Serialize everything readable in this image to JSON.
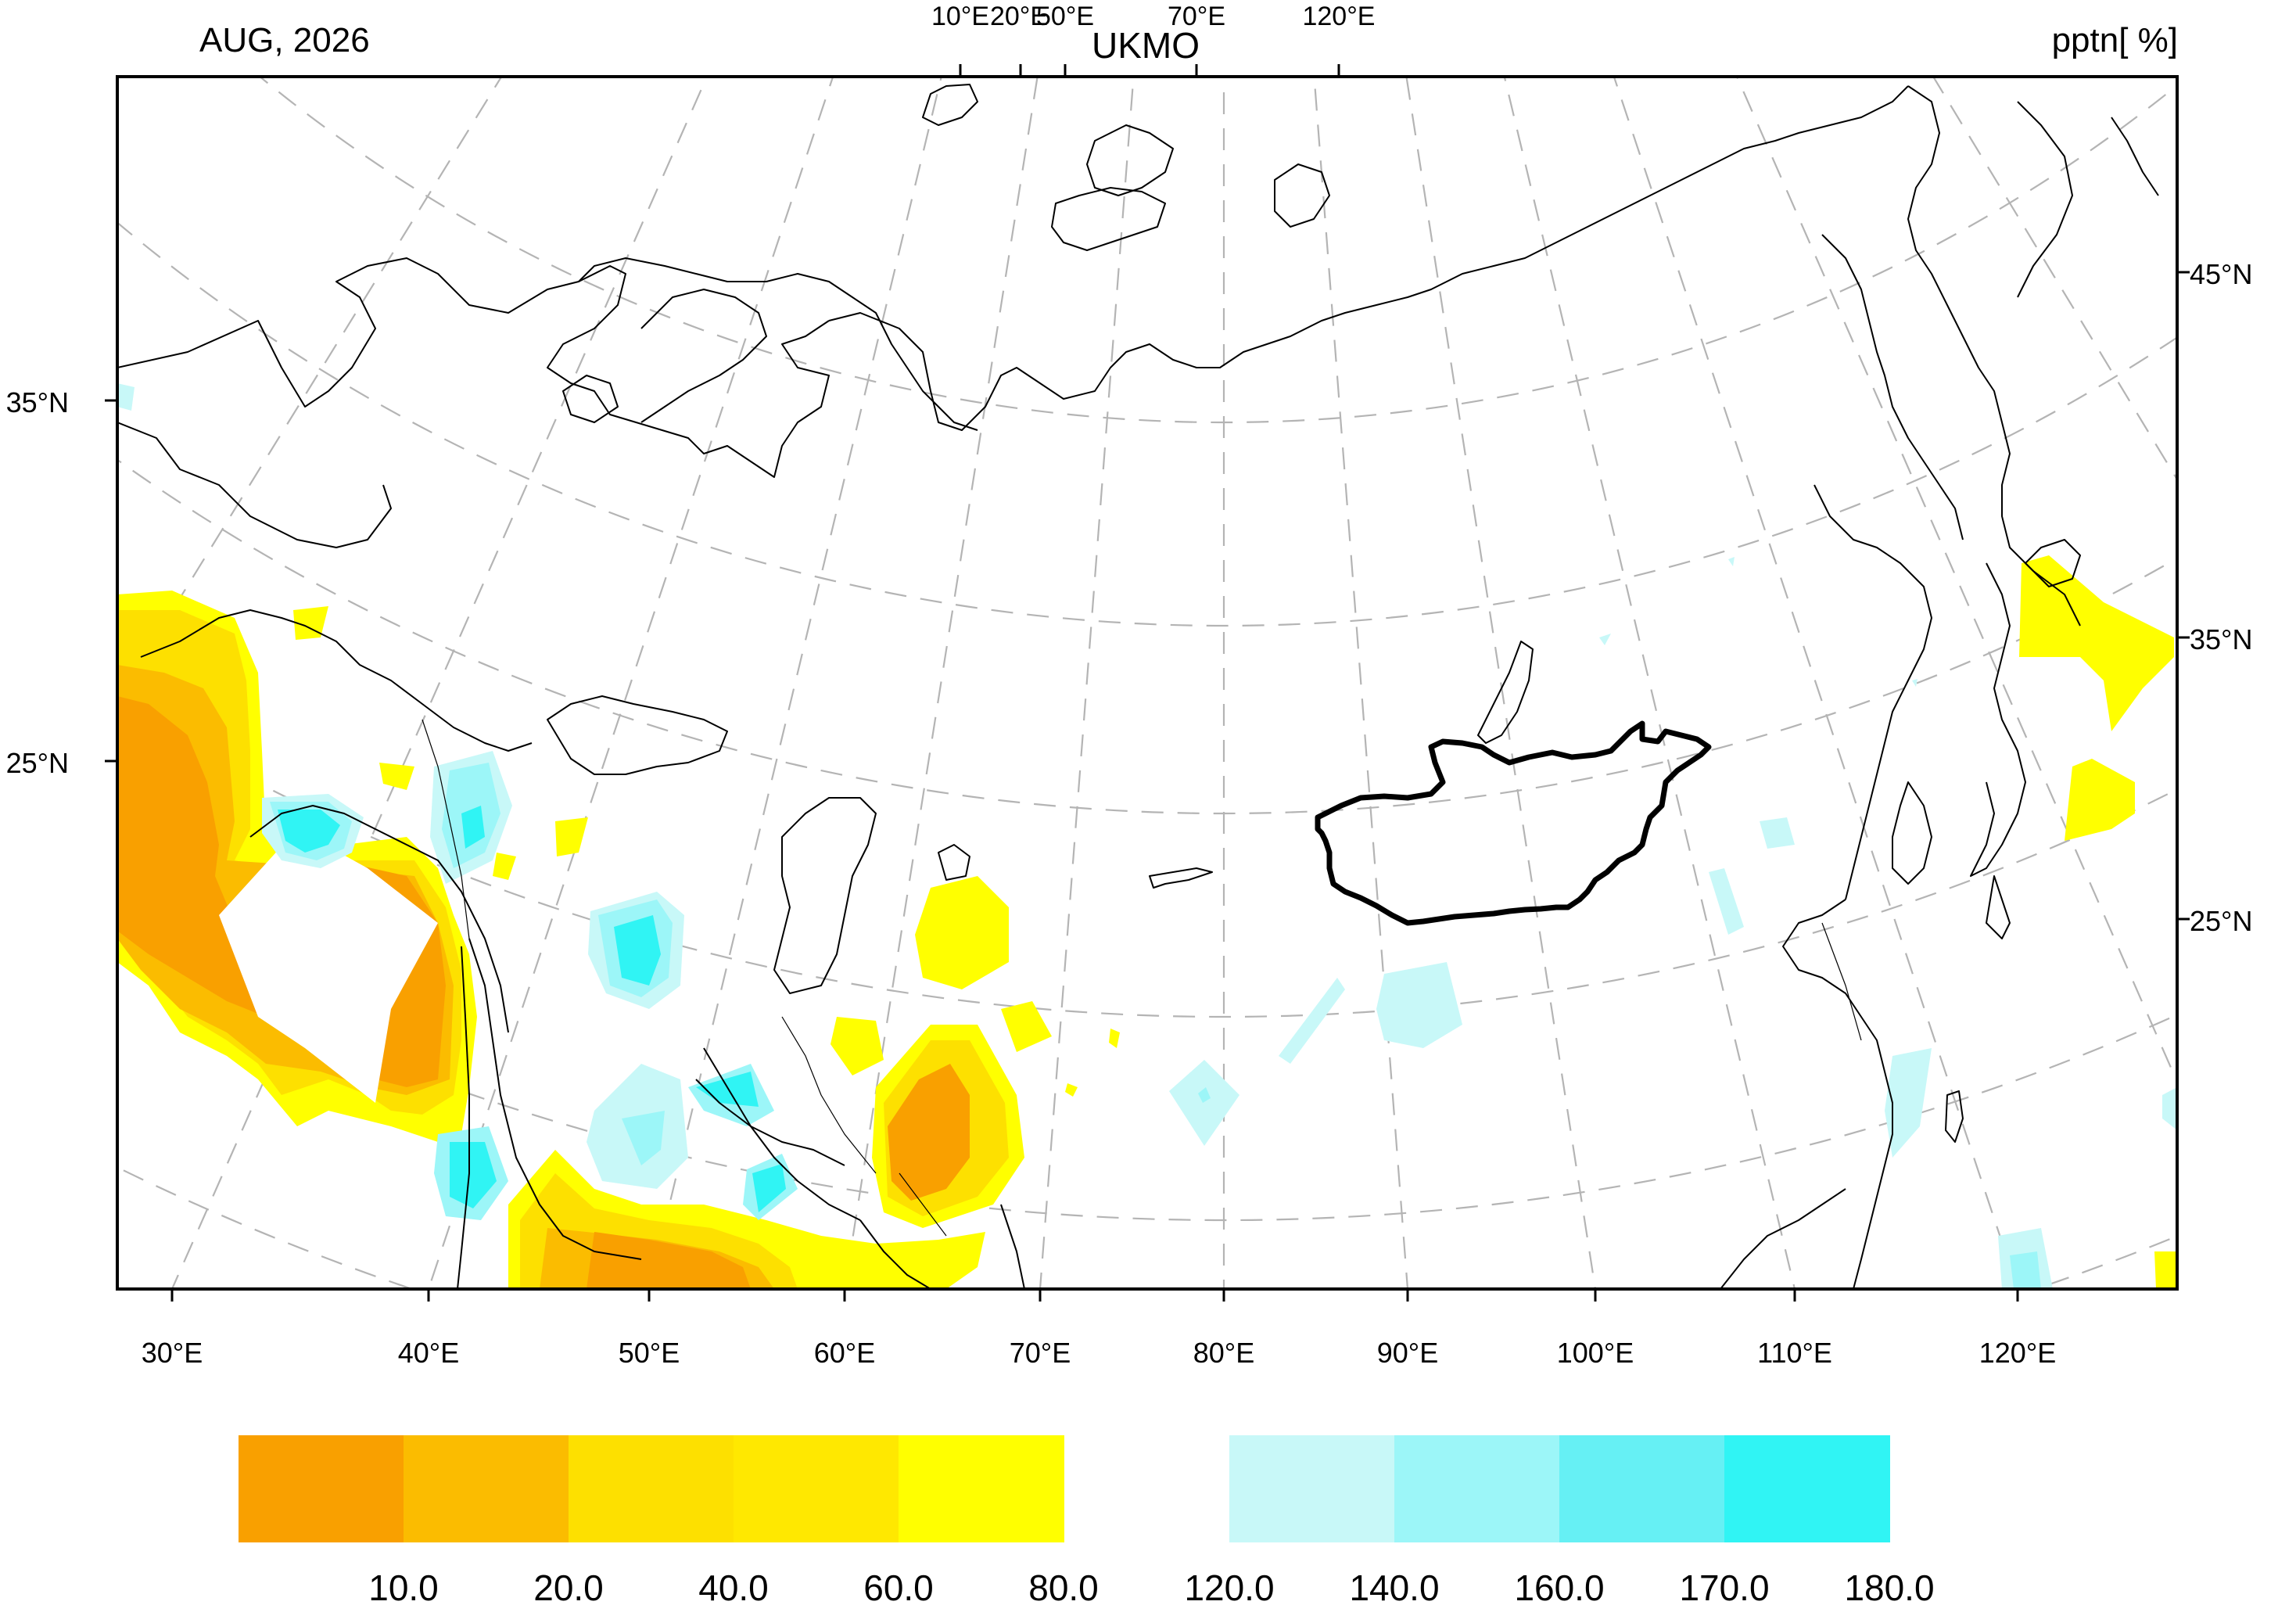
{
  "header": {
    "period": "AUG, 2026",
    "model": "UKMO",
    "variable": "pptn[ %]",
    "top_lon_labels": [
      "10°E",
      "20°E",
      "50°E",
      "70°E",
      "120°E"
    ]
  },
  "axes": {
    "bottom_lon_labels": [
      "30°E",
      "40°E",
      "50°E",
      "60°E",
      "70°E",
      "80°E",
      "90°E",
      "100°E",
      "110°E",
      "120°E"
    ],
    "left_lat_labels": [
      "35°N",
      "25°N"
    ],
    "right_lat_labels": [
      "45°N",
      "35°N",
      "25°N"
    ]
  },
  "legend": {
    "dry": {
      "colors": [
        "#f9a000",
        "#fbbc00",
        "#fde000",
        "#ffe800",
        "#ffff00"
      ],
      "labels": [
        "10.0",
        "20.0",
        "40.0",
        "60.0",
        "80.0"
      ]
    },
    "wet": {
      "colors": [
        "#c8f8f8",
        "#9cf6f8",
        "#66f0f4",
        "#30f4f4"
      ],
      "labels": [
        "120.0",
        "140.0",
        "160.0",
        "170.0",
        "180.0"
      ]
    }
  },
  "map": {
    "highlighted_region": "Mongolia border",
    "colors": {
      "coast": "#000000",
      "grid": "#b4b4b4",
      "border": "#000000"
    }
  }
}
